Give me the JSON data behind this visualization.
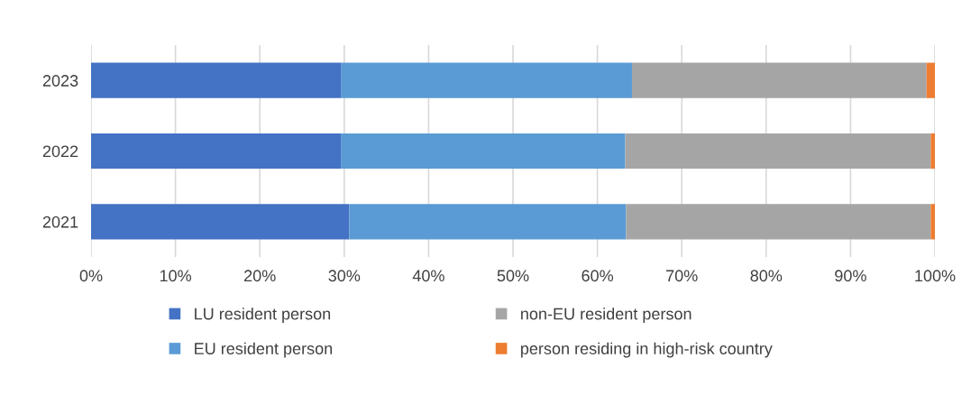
{
  "chart_data": {
    "type": "bar",
    "orientation": "horizontal",
    "stacked": true,
    "categories": [
      "2023",
      "2022",
      "2021"
    ],
    "series": [
      {
        "name": "LU resident person",
        "color": "#4472c4",
        "values": [
          29.6,
          29.6,
          30.6
        ]
      },
      {
        "name": "EU resident person",
        "color": "#5b9bd5",
        "values": [
          34.5,
          33.7,
          32.8
        ]
      },
      {
        "name": "non-EU resident person",
        "color": "#a5a5a5",
        "values": [
          34.9,
          36.2,
          36.1
        ]
      },
      {
        "name": "person residing in high-risk country",
        "color": "#ed7d31",
        "values": [
          1.0,
          0.5,
          0.5
        ]
      }
    ],
    "xlim": [
      0,
      100
    ],
    "xticks": [
      {
        "value": 0,
        "label": "0%"
      },
      {
        "value": 10,
        "label": "10%"
      },
      {
        "value": 20,
        "label": "20%"
      },
      {
        "value": 30,
        "label": "30%"
      },
      {
        "value": 40,
        "label": "40%"
      },
      {
        "value": 50,
        "label": "50%"
      },
      {
        "value": 60,
        "label": "60%"
      },
      {
        "value": 70,
        "label": "70%"
      },
      {
        "value": 80,
        "label": "80%"
      },
      {
        "value": 90,
        "label": "90%"
      },
      {
        "value": 100,
        "label": "100%"
      }
    ],
    "grid": "x",
    "legend": "bottom"
  }
}
